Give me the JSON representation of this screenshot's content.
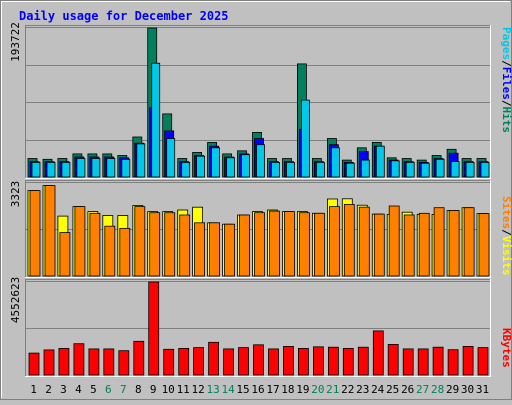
{
  "colors": {
    "background": "#C0C0C0",
    "title": "#0000FF",
    "hits": "#00805C",
    "files": "#0000FF",
    "pages": "#00C8E8",
    "visits": "#FFFF00",
    "sites": "#FF8000",
    "kbytes": "#FF0000",
    "weekend_label": "#00805C",
    "weekday_label": "#000000",
    "separator": "#000000"
  },
  "chart_data": {
    "type": "bar",
    "title": "Daily usage for December 2025",
    "categories": [
      "1",
      "2",
      "3",
      "4",
      "5",
      "6",
      "7",
      "8",
      "9",
      "10",
      "11",
      "12",
      "13",
      "14",
      "15",
      "16",
      "17",
      "18",
      "19",
      "20",
      "21",
      "22",
      "23",
      "24",
      "25",
      "26",
      "27",
      "28",
      "29",
      "30",
      "31"
    ],
    "weekend_days": [
      "6",
      "7",
      "13",
      "14",
      "20",
      "21",
      "27",
      "28"
    ],
    "panels": [
      {
        "id": "hits_files_pages",
        "ymax_label": "193722",
        "ymax": 193722,
        "grid": true,
        "axis_legend": [
          "Pages",
          "Files",
          "Hits"
        ],
        "legend_placement": "right",
        "series": [
          {
            "name": "Hits",
            "values": [
              24000,
              23000,
              24000,
              30000,
              30000,
              30000,
              28000,
              52000,
              193722,
              82000,
              24000,
              32000,
              45000,
              30000,
              34000,
              58000,
              24000,
              24000,
              147000,
              24000,
              50000,
              22000,
              38000,
              45000,
              25000,
              24000,
              22000,
              28000,
              36000,
              24000,
              24000
            ]
          },
          {
            "name": "Files",
            "values": [
              20000,
              20000,
              20000,
              26000,
              26000,
              26000,
              25000,
              44000,
              90000,
              60000,
              20000,
              28000,
              40000,
              26000,
              30000,
              50000,
              20000,
              20000,
              62000,
              20000,
              42000,
              19000,
              33000,
              40000,
              22000,
              20000,
              19000,
              24000,
              31000,
              20000,
              20000
            ]
          },
          {
            "name": "Pages",
            "values": [
              19000,
              19000,
              19000,
              24000,
              24000,
              24000,
              23000,
              43000,
              148000,
              50000,
              19000,
              27000,
              38000,
              25000,
              29000,
              42000,
              19000,
              19000,
              100000,
              19000,
              38000,
              18000,
              22000,
              40000,
              21000,
              19000,
              18000,
              23000,
              20000,
              19000,
              19000
            ]
          }
        ]
      },
      {
        "id": "visits_sites",
        "ymax_label": "3323",
        "ymax": 3323,
        "grid": true,
        "axis_legend": [
          "Sites",
          "Visits"
        ],
        "legend_placement": "right",
        "series": [
          {
            "name": "Visits",
            "values": [
              3050,
              3230,
              2140,
              2480,
              2300,
              2160,
              2160,
              2520,
              2300,
              2300,
              2360,
              2460,
              1900,
              1850,
              2180,
              2300,
              2360,
              2300,
              2300,
              2240,
              2750,
              2760,
              2530,
              2210,
              2200,
              2280,
              2200,
              2200,
              2340,
              2440,
              2230
            ]
          },
          {
            "name": "Sites",
            "values": [
              3050,
              3230,
              1550,
              2480,
              2240,
              1780,
              1700,
              2480,
              2260,
              2260,
              2180,
              1900,
              1900,
              1850,
              2180,
              2260,
              2320,
              2300,
              2260,
              2240,
              2480,
              2560,
              2460,
              2210,
              2500,
              2180,
              2240,
              2440,
              2340,
              2440,
              2230
            ]
          }
        ]
      },
      {
        "id": "kbytes",
        "ymax_label": "4552623",
        "ymax": 4552623,
        "grid": true,
        "axis_legend": [
          "KBytes"
        ],
        "legend_placement": "right",
        "series": [
          {
            "name": "KBytes",
            "values": [
              1070000,
              1230000,
              1300000,
              1530000,
              1280000,
              1280000,
              1190000,
              1650000,
              4552623,
              1260000,
              1300000,
              1340000,
              1600000,
              1280000,
              1340000,
              1480000,
              1280000,
              1400000,
              1300000,
              1380000,
              1360000,
              1300000,
              1360000,
              2160000,
              1500000,
              1280000,
              1280000,
              1360000,
              1240000,
              1400000,
              1340000
            ]
          }
        ]
      }
    ]
  }
}
